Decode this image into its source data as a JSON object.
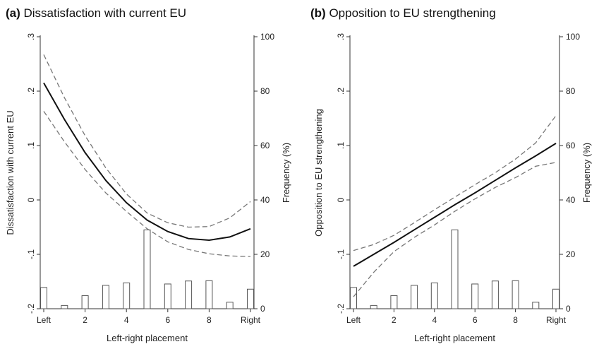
{
  "chart_data": [
    {
      "type": "line",
      "panel_label": "(a)",
      "title": "Dissatisfaction with current EU",
      "xlabel": "Left-right placement",
      "ylabel": "Dissatisfaction with current EU",
      "y2label": "Frequency (%)",
      "xlim": [
        0,
        10
      ],
      "ylim": [
        -0.2,
        0.3
      ],
      "y2lim": [
        0,
        100
      ],
      "x_ticks": [
        {
          "value": 0,
          "label": "Left"
        },
        {
          "value": 2,
          "label": "2"
        },
        {
          "value": 4,
          "label": "4"
        },
        {
          "value": 6,
          "label": "6"
        },
        {
          "value": 8,
          "label": "8"
        },
        {
          "value": 10,
          "label": "Right"
        }
      ],
      "y_ticks": [
        {
          "value": -0.2,
          "label": "-.2"
        },
        {
          "value": -0.1,
          "label": "-.1"
        },
        {
          "value": 0,
          "label": "0"
        },
        {
          "value": 0.1,
          "label": ".1"
        },
        {
          "value": 0.2,
          "label": ".2"
        },
        {
          "value": 0.3,
          "label": ".3"
        }
      ],
      "y2_ticks": [
        {
          "value": 0,
          "label": "0"
        },
        {
          "value": 20,
          "label": "20"
        },
        {
          "value": 40,
          "label": "40"
        },
        {
          "value": 60,
          "label": "60"
        },
        {
          "value": 80,
          "label": "80"
        },
        {
          "value": 100,
          "label": "100"
        }
      ],
      "x": [
        0,
        1,
        2,
        3,
        4,
        5,
        6,
        7,
        8,
        9,
        10
      ],
      "fit": [
        0.215,
        0.148,
        0.087,
        0.036,
        -0.005,
        -0.037,
        -0.058,
        -0.071,
        -0.074,
        -0.068,
        -0.053
      ],
      "ci_upper": [
        0.267,
        0.188,
        0.118,
        0.059,
        0.011,
        -0.024,
        -0.042,
        -0.05,
        -0.049,
        -0.033,
        -0.003
      ],
      "ci_lower": [
        0.163,
        0.107,
        0.056,
        0.013,
        -0.021,
        -0.053,
        -0.077,
        -0.091,
        -0.099,
        -0.103,
        -0.104
      ],
      "frequency_pct": [
        7.8,
        1.2,
        4.8,
        8.6,
        9.5,
        29.0,
        9.1,
        10.2,
        10.3,
        2.4,
        7.2
      ],
      "legend": "none",
      "grid": false
    },
    {
      "type": "line",
      "panel_label": "(b)",
      "title": "Opposition to EU strengthening",
      "xlabel": "Left-right placement",
      "ylabel": "Opposition to EU strengthening",
      "y2label": "Frequency (%)",
      "xlim": [
        0,
        10
      ],
      "ylim": [
        -0.2,
        0.3
      ],
      "y2lim": [
        0,
        100
      ],
      "x_ticks": [
        {
          "value": 0,
          "label": "Left"
        },
        {
          "value": 2,
          "label": "2"
        },
        {
          "value": 4,
          "label": "4"
        },
        {
          "value": 6,
          "label": "6"
        },
        {
          "value": 8,
          "label": "8"
        },
        {
          "value": 10,
          "label": "Right"
        }
      ],
      "y_ticks": [
        {
          "value": -0.2,
          "label": "-.2"
        },
        {
          "value": -0.1,
          "label": "-.1"
        },
        {
          "value": 0,
          "label": "0"
        },
        {
          "value": 0.1,
          "label": ".1"
        },
        {
          "value": 0.2,
          "label": ".2"
        },
        {
          "value": 0.3,
          "label": ".3"
        }
      ],
      "y2_ticks": [
        {
          "value": 0,
          "label": "0"
        },
        {
          "value": 20,
          "label": "20"
        },
        {
          "value": 40,
          "label": "40"
        },
        {
          "value": 60,
          "label": "60"
        },
        {
          "value": 80,
          "label": "80"
        },
        {
          "value": 100,
          "label": "100"
        }
      ],
      "x": [
        0,
        1,
        2,
        3,
        4,
        5,
        6,
        7,
        8,
        9,
        10
      ],
      "fit": [
        -0.122,
        -0.1,
        -0.078,
        -0.055,
        -0.032,
        -0.009,
        0.013,
        0.036,
        0.059,
        0.081,
        0.104
      ],
      "ci_upper": [
        -0.093,
        -0.082,
        -0.065,
        -0.042,
        -0.018,
        0.005,
        0.028,
        0.05,
        0.075,
        0.105,
        0.155
      ],
      "ci_lower": [
        -0.178,
        -0.133,
        -0.095,
        -0.069,
        -0.046,
        -0.021,
        0.002,
        0.023,
        0.041,
        0.062,
        0.069
      ],
      "frequency_pct": [
        7.8,
        1.2,
        4.8,
        8.6,
        9.5,
        29.0,
        9.1,
        10.2,
        10.3,
        2.4,
        7.2
      ],
      "legend": "none",
      "grid": false
    }
  ]
}
